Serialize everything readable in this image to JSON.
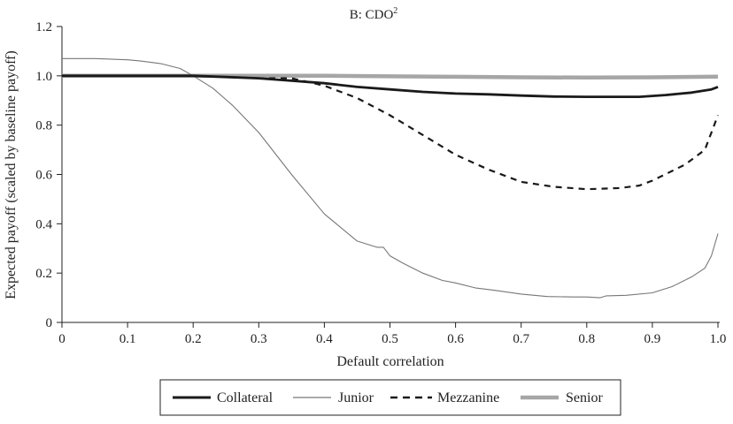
{
  "chart_data": {
    "type": "line",
    "title": "B: CDO",
    "title_superscript": "2",
    "xlabel": "Default correlation",
    "ylabel": "Expected payoff (scaled by baseline payoff)",
    "xlim": [
      0,
      1.0
    ],
    "ylim": [
      0,
      1.2
    ],
    "x_ticks": [
      0,
      0.1,
      0.2,
      0.3,
      0.4,
      0.5,
      0.6,
      0.7,
      0.8,
      0.9,
      1.0
    ],
    "x_tick_labels": [
      "0",
      "0.1",
      "0.2",
      "0.3",
      "0.4",
      "0.5",
      "0.6",
      "0.7",
      "0.8",
      "0.9",
      "1.0"
    ],
    "y_ticks": [
      0,
      0.2,
      0.4,
      0.6,
      0.8,
      1.0,
      1.2
    ],
    "y_tick_labels": [
      "0",
      "0.2",
      "0.4",
      "0.6",
      "0.8",
      "1.0",
      "1.2"
    ],
    "grid": false,
    "legend_position": "bottom",
    "series": [
      {
        "name": "Collateral",
        "color": "#1a1a1a",
        "style": "solid-thick",
        "x": [
          0,
          0.05,
          0.1,
          0.15,
          0.2,
          0.25,
          0.3,
          0.35,
          0.4,
          0.45,
          0.5,
          0.55,
          0.6,
          0.65,
          0.7,
          0.75,
          0.8,
          0.85,
          0.88,
          0.92,
          0.96,
          0.99,
          1.0
        ],
        "y": [
          1.0,
          1.0,
          1.0,
          1.0,
          1.0,
          0.995,
          0.99,
          0.98,
          0.97,
          0.955,
          0.945,
          0.935,
          0.928,
          0.925,
          0.92,
          0.916,
          0.915,
          0.915,
          0.915,
          0.922,
          0.932,
          0.945,
          0.955
        ]
      },
      {
        "name": "Junior",
        "color": "#777777",
        "style": "solid-thin",
        "x": [
          0,
          0.05,
          0.1,
          0.12,
          0.15,
          0.18,
          0.2,
          0.23,
          0.26,
          0.3,
          0.35,
          0.4,
          0.45,
          0.48,
          0.49,
          0.5,
          0.52,
          0.55,
          0.58,
          0.6,
          0.63,
          0.66,
          0.7,
          0.74,
          0.78,
          0.8,
          0.82,
          0.83,
          0.86,
          0.9,
          0.93,
          0.96,
          0.98,
          0.99,
          1.0
        ],
        "y": [
          1.07,
          1.07,
          1.065,
          1.06,
          1.05,
          1.03,
          1.0,
          0.95,
          0.88,
          0.77,
          0.6,
          0.44,
          0.33,
          0.305,
          0.305,
          0.27,
          0.24,
          0.2,
          0.17,
          0.16,
          0.14,
          0.13,
          0.115,
          0.105,
          0.103,
          0.103,
          0.1,
          0.108,
          0.11,
          0.12,
          0.145,
          0.185,
          0.22,
          0.27,
          0.36
        ]
      },
      {
        "name": "Mezzanine",
        "color": "#1a1a1a",
        "style": "dashed",
        "x": [
          0,
          0.1,
          0.2,
          0.3,
          0.35,
          0.4,
          0.45,
          0.5,
          0.55,
          0.6,
          0.65,
          0.7,
          0.75,
          0.8,
          0.85,
          0.88,
          0.9,
          0.95,
          0.98,
          1.0
        ],
        "y": [
          1.0,
          1.0,
          1.0,
          0.99,
          0.99,
          0.96,
          0.91,
          0.84,
          0.76,
          0.68,
          0.62,
          0.57,
          0.55,
          0.54,
          0.545,
          0.555,
          0.575,
          0.64,
          0.7,
          0.84
        ]
      },
      {
        "name": "Senior",
        "color": "#a6a6a6",
        "style": "solid-thickest",
        "x": [
          0,
          0.1,
          0.2,
          0.3,
          0.4,
          0.5,
          0.6,
          0.7,
          0.8,
          0.9,
          1.0
        ],
        "y": [
          1.0,
          1.0,
          1.0,
          1.0,
          1.0,
          0.998,
          0.996,
          0.994,
          0.993,
          0.994,
          0.997
        ]
      }
    ]
  }
}
